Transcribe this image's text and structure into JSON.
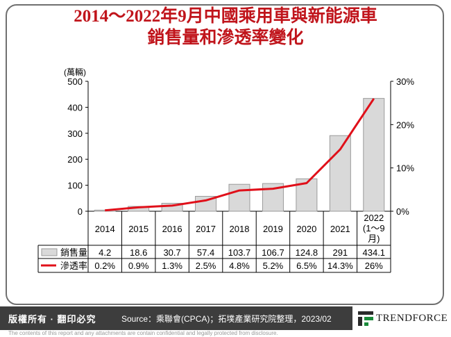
{
  "title_lines": [
    "2014～2022年9月中國乘用車與新能源車",
    "銷售量和滲透率變化"
  ],
  "chart_data": {
    "type": "bar",
    "categories": [
      "2014",
      "2015",
      "2016",
      "2017",
      "2018",
      "2019",
      "2020",
      "2021",
      "2022\n(1～9\n月)"
    ],
    "series": [
      {
        "name": "銷售量",
        "type": "bar",
        "axis": "left",
        "values": [
          4.2,
          18.6,
          30.7,
          57.4,
          103.7,
          106.7,
          124.8,
          291,
          434.1
        ],
        "labels": [
          "4.2",
          "18.6",
          "30.7",
          "57.4",
          "103.7",
          "106.7",
          "124.8",
          "291",
          "434.1"
        ],
        "color": "#d9d9d9"
      },
      {
        "name": "滲透率",
        "type": "line",
        "axis": "right",
        "values": [
          0.2,
          0.9,
          1.3,
          2.5,
          4.8,
          5.2,
          6.5,
          14.3,
          26
        ],
        "labels": [
          "0.2%",
          "0.9%",
          "1.3%",
          "2.5%",
          "4.8%",
          "5.2%",
          "6.5%",
          "14.3%",
          "26%"
        ],
        "color": "#e0101a"
      }
    ],
    "ylabel": "(萬輛)",
    "ylim": [
      0,
      500
    ],
    "y_ticks": [
      "0",
      "100",
      "200",
      "300",
      "400",
      "500"
    ],
    "y2lim": [
      0,
      30
    ],
    "y2_ticks": [
      "0%",
      "10%",
      "20%",
      "30%"
    ],
    "grid": false,
    "legend": "data-table"
  },
  "footer": {
    "copyright": "版權所有 · 翻印必究",
    "source": "Source：乘聯會(CPCA)；拓墣產業研究院整理，2023/02",
    "brand": "TRENDFORCE",
    "disclaimer": "The contents of this report and any attachments are contain confidential and legally protected from disclosure."
  }
}
